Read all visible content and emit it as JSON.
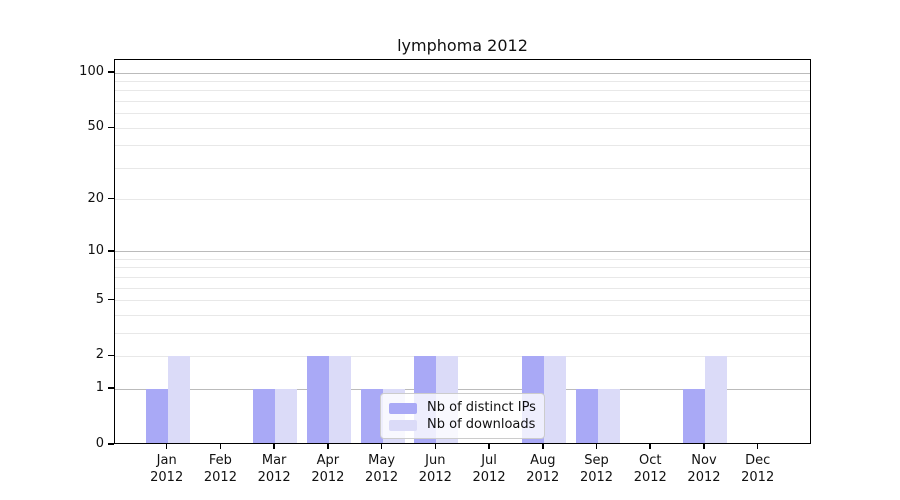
{
  "figure": {
    "background": "#ffffff"
  },
  "chart_data": {
    "type": "bar",
    "title": "lymphoma 2012",
    "categories": [
      "Jan",
      "Feb",
      "Mar",
      "Apr",
      "May",
      "Jun",
      "Jul",
      "Aug",
      "Sep",
      "Oct",
      "Nov",
      "Dec"
    ],
    "category_year": "2012",
    "series": [
      {
        "name": "Nb of distinct IPs",
        "color": "#a9a9f6",
        "values": [
          1,
          0,
          1,
          2,
          1,
          2,
          0,
          2,
          1,
          0,
          1,
          0
        ]
      },
      {
        "name": "Nb of downloads",
        "color": "#dbdbf8",
        "values": [
          2,
          0,
          1,
          2,
          1,
          2,
          0,
          2,
          1,
          0,
          2,
          0
        ]
      }
    ],
    "y_axis": {
      "scale": "log1p",
      "max": 118,
      "tick_values": [
        0,
        1,
        2,
        5,
        10,
        20,
        50,
        100
      ],
      "tick_labels": [
        "0",
        "1",
        "2",
        "5",
        "10",
        "20",
        "50",
        "100"
      ],
      "decade_gridlines": [
        1,
        10,
        100
      ],
      "minor_gridlines": [
        2,
        3,
        4,
        5,
        6,
        7,
        8,
        9,
        20,
        30,
        40,
        50,
        60,
        70,
        80,
        90
      ]
    },
    "legend": {
      "position": "lower center",
      "labels": [
        "Nb of distinct IPs",
        "Nb of downloads"
      ]
    },
    "grid": true,
    "colors": {
      "decade_grid": "#bbbbbb",
      "minor_grid": "#e8e8e8",
      "axis": "#000000",
      "text": "#111111",
      "legend_border": "#cccccc"
    }
  }
}
